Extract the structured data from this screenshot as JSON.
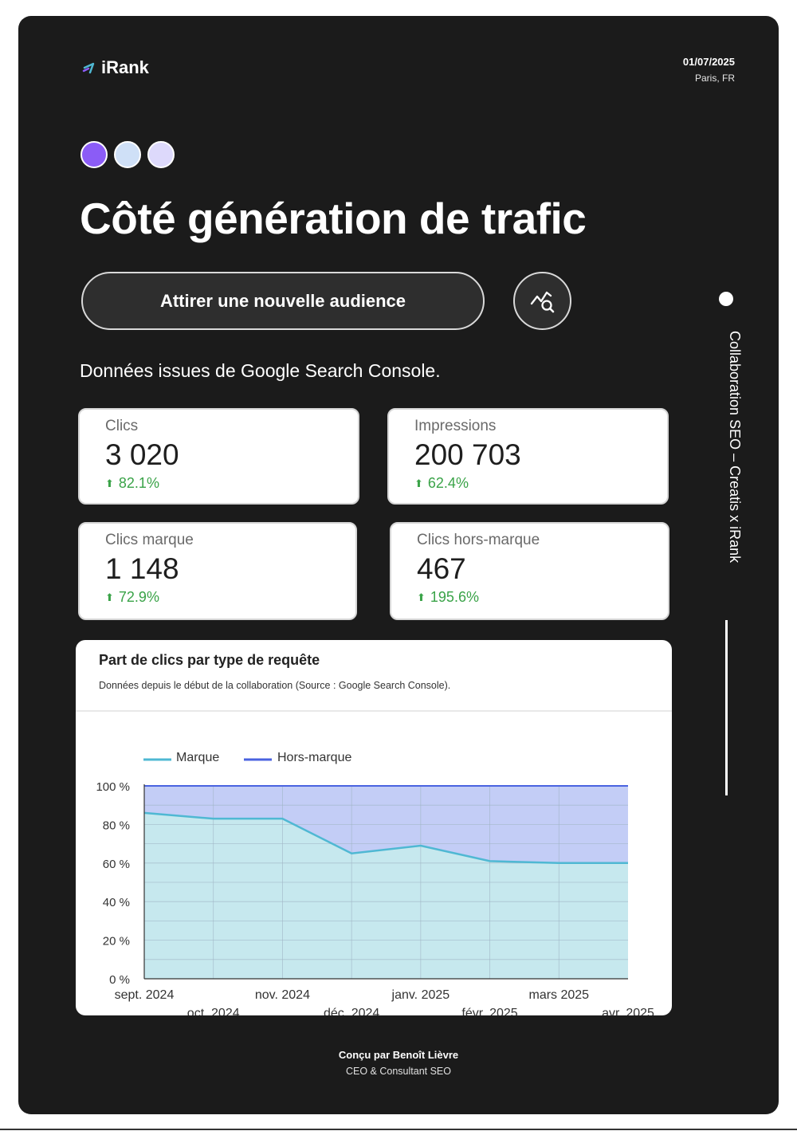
{
  "header": {
    "brand": "iRank",
    "date": "01/07/2025",
    "location": "Paris, FR"
  },
  "dots_colors": [
    "#8b5cf6",
    "#cfe0f7",
    "#ddd9fb"
  ],
  "title": "Côté génération de trafic",
  "pill_label": "Attirer une nouvelle audience",
  "icon_name": "chart-search-icon",
  "subtitle": "Données issues de Google Search Console.",
  "metrics": [
    {
      "label": "Clics",
      "value": "3 020",
      "delta": "82.1%"
    },
    {
      "label": "Impressions",
      "value": "200 703",
      "delta": "62.4%"
    },
    {
      "label": "Clics marque",
      "value": "1 148",
      "delta": "72.9%"
    },
    {
      "label": "Clics hors-marque",
      "value": "467",
      "delta": "195.6%"
    }
  ],
  "chart": {
    "title": "Part de clics par type de requête",
    "subtitle": "Données depuis le début de la collaboration (Source : Google Search Console)."
  },
  "chart_data": {
    "type": "area",
    "stacked": true,
    "x": [
      "sept. 2024",
      "oct. 2024",
      "nov. 2024",
      "déc. 2024",
      "janv. 2025",
      "févr. 2025",
      "mars 2025",
      "avr. 2025"
    ],
    "series": [
      {
        "name": "Marque",
        "color": "#4fb8d3",
        "values": [
          86,
          83,
          83,
          65,
          69,
          61,
          60,
          60
        ]
      },
      {
        "name": "Hors-marque",
        "color": "#4a63e0",
        "values": [
          14,
          17,
          17,
          35,
          31,
          39,
          40,
          40
        ]
      }
    ],
    "y_ticks": [
      "0 %",
      "20 %",
      "40 %",
      "60 %",
      "80 %",
      "100 %"
    ],
    "ylim": [
      0,
      100
    ],
    "legend": "top-left",
    "grid": true
  },
  "sidebar": {
    "vertical_text": "Collaboration SEO – Creatis x iRank"
  },
  "footer": {
    "line1": "Conçu par Benoît Lièvre",
    "line2": "CEO & Consultant SEO"
  }
}
